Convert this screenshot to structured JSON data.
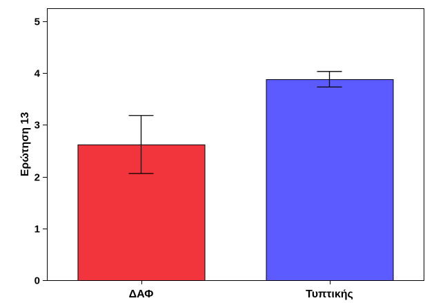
{
  "chart_data": {
    "type": "bar",
    "categories": [
      "ΔΑΦ",
      "Τυπτικής"
    ],
    "values": [
      2.62,
      3.88
    ],
    "error_bars": [
      {
        "low": 2.06,
        "high": 3.18
      },
      {
        "low": 3.73,
        "high": 4.03
      }
    ],
    "colors": [
      "#f2353d",
      "#5b5bff"
    ],
    "ylabel": "Ερώτηση 13",
    "xlabel": "",
    "ylim": [
      0,
      5.25
    ],
    "yticks": [
      0,
      1,
      2,
      3,
      4,
      5
    ],
    "grid": false
  }
}
